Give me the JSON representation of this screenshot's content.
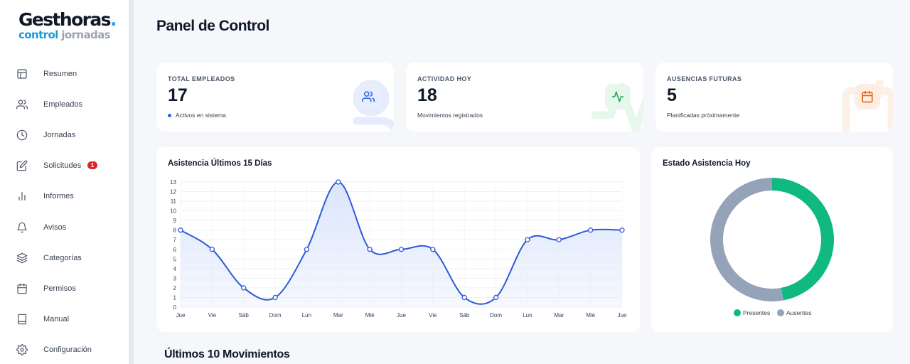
{
  "logo": {
    "main": "Gesthoras",
    "dot": ".",
    "sub1": "control",
    "sub2": "jornadas"
  },
  "sidebar": {
    "items": [
      {
        "label": "Resumen",
        "icon": "layout-icon"
      },
      {
        "label": "Empleados",
        "icon": "users-icon"
      },
      {
        "label": "Jornadas",
        "icon": "clock-icon"
      },
      {
        "label": "Solicitudes",
        "icon": "edit-icon",
        "badge": "1"
      },
      {
        "label": "Informes",
        "icon": "bar-chart-icon"
      },
      {
        "label": "Avisos",
        "icon": "bell-icon"
      },
      {
        "label": "Categorías",
        "icon": "layers-icon"
      },
      {
        "label": "Permisos",
        "icon": "calendar-icon"
      },
      {
        "label": "Manual",
        "icon": "book-icon"
      },
      {
        "label": "Configuración",
        "icon": "settings-icon"
      }
    ]
  },
  "header": {
    "title": "Panel de Control"
  },
  "stats": [
    {
      "label": "TOTAL EMPLEADOS",
      "value": "17",
      "sub": "Activos en sistema",
      "icon": "users-icon",
      "accent": "#2563eb"
    },
    {
      "label": "ACTIVIDAD HOY",
      "value": "18",
      "sub": "Movimientos registrados",
      "icon": "activity-icon",
      "accent": "#16a34a"
    },
    {
      "label": "AUSENCIAS FUTURAS",
      "value": "5",
      "sub": "Planificadas próximamente",
      "icon": "calendar-icon",
      "accent": "#ea580c"
    }
  ],
  "attendance_chart": {
    "title": "Asistencia Últimos 15 Días",
    "chart_data": {
      "type": "line",
      "categories": [
        "Jue",
        "Vie",
        "Sáb",
        "Dom",
        "Lun",
        "Mar",
        "Mié",
        "Jue",
        "Vie",
        "Sáb",
        "Dom",
        "Lun",
        "Mar",
        "Mié",
        "Jue"
      ],
      "values": [
        8,
        6,
        2,
        1,
        6,
        13,
        6,
        6,
        6,
        1,
        1,
        7,
        7,
        8,
        8
      ],
      "ylim": [
        0,
        13
      ],
      "yticks": [
        "0",
        "1",
        "2",
        "3",
        "4",
        "5",
        "6",
        "7",
        "8",
        "9",
        "10",
        "11",
        "12",
        "13"
      ],
      "grid": true,
      "line_color": "#2d5bd7",
      "fill_color": "#dbe5fb"
    }
  },
  "status_chart": {
    "title": "Estado Asistencia Hoy",
    "chart_data": {
      "type": "pie",
      "categories": [
        "Presentes",
        "Ausentes"
      ],
      "values": [
        8,
        9
      ],
      "colors": [
        "#10b981",
        "#94a3b8"
      ],
      "legend": "bottom"
    }
  },
  "movements": {
    "title": "Últimos 10 Movimientos"
  }
}
